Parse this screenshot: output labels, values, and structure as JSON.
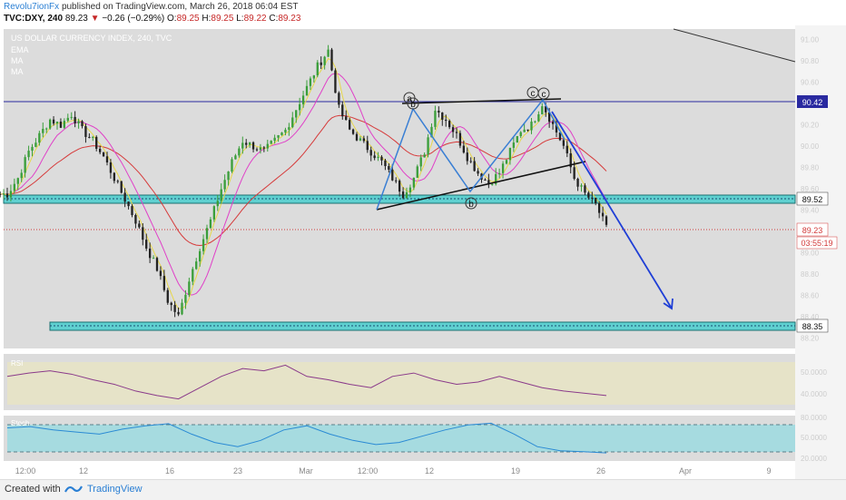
{
  "header": {
    "author": "Revolu7ionFx",
    "published": "published on TradingView.com, March 26, 2018 06:04 EST",
    "symbol": "TVC:DXY, 240",
    "last": "89.23",
    "change": "−0.26 (−0.29%)",
    "o_label": "O:",
    "o": "89.25",
    "h_label": "H:",
    "h": "89.25",
    "l_label": "L:",
    "l": "89.22",
    "c_label": "C:",
    "c": "89.23"
  },
  "legend": {
    "title": "US DOLLAR CURRENCY INDEX, 240, TVC",
    "items": [
      "EMA",
      "MA",
      "MA"
    ]
  },
  "price_badges": {
    "resistance": "90.42",
    "support_zone": "89.52",
    "last_price": "89.23",
    "countdown": "03:55:19",
    "lower_support": "88.35"
  },
  "axis": {
    "price_ticks": [
      "91.00",
      "90.80",
      "90.60",
      "90.40",
      "90.20",
      "90.00",
      "89.80",
      "89.60",
      "89.40",
      "89.20",
      "89.00",
      "88.80",
      "88.60",
      "88.40",
      "88.20"
    ],
    "time_ticks": [
      "12:00",
      "12",
      "16",
      "23",
      "Mar",
      "12:00",
      "12",
      "19",
      "26",
      "Apr",
      "9"
    ],
    "rsi_ticks": [
      "50.0000",
      "40.0000"
    ],
    "stoch_ticks": [
      "80.0000",
      "50.0000",
      "20.0000"
    ]
  },
  "pattern_labels": [
    "a",
    "b",
    "c",
    "c",
    "b"
  ],
  "panels": {
    "rsi_label": "RSI",
    "stoch_label": "Stoch"
  },
  "footer": {
    "created": "Created with",
    "brand": "TradingView"
  },
  "colors": {
    "up": "#3a9e3a",
    "down": "#222222",
    "ema": "#d63a3a",
    "ma1": "#e040c8",
    "ma2": "#e8d84a",
    "zone": "#5fd0d0",
    "resistance": "#2a2aa0",
    "projection": "#1f3fd6",
    "pattern": "#3a7fd4"
  },
  "chart_data": {
    "type": "candlestick",
    "title": "US DOLLAR CURRENCY INDEX, 240, TVC",
    "symbol": "TVC:DXY",
    "timeframe": "240",
    "ylim": [
      88.1,
      91.1
    ],
    "series_close": [
      89.55,
      89.7,
      89.95,
      90.1,
      90.25,
      90.2,
      90.3,
      90.15,
      90.05,
      89.9,
      89.7,
      89.5,
      89.3,
      89.05,
      88.85,
      88.55,
      88.4,
      88.75,
      89.05,
      89.3,
      89.6,
      89.85,
      90.05,
      90.0,
      89.95,
      90.05,
      90.15,
      90.35,
      90.55,
      90.75,
      90.9,
      90.35,
      90.15,
      90.05,
      89.95,
      89.85,
      89.7,
      89.55,
      89.7,
      89.95,
      90.35,
      90.25,
      90.1,
      89.9,
      89.75,
      89.65,
      89.75,
      89.95,
      90.15,
      90.2,
      90.4,
      90.2,
      90.0,
      89.7,
      89.55,
      89.45,
      89.23
    ],
    "levels": {
      "resistance": 90.42,
      "support_zone": 89.52,
      "last": 89.23,
      "lower_support": 88.35
    },
    "rsi": [
      55,
      58,
      60,
      57,
      52,
      48,
      42,
      38,
      35,
      45,
      55,
      62,
      60,
      65,
      55,
      52,
      48,
      45,
      55,
      58,
      52,
      48,
      50,
      55,
      50,
      45,
      42,
      40,
      38
    ],
    "stoch": [
      75,
      78,
      70,
      65,
      60,
      72,
      80,
      85,
      60,
      40,
      30,
      45,
      70,
      80,
      60,
      45,
      35,
      40,
      55,
      70,
      82,
      86,
      60,
      30,
      20,
      18,
      15
    ]
  }
}
